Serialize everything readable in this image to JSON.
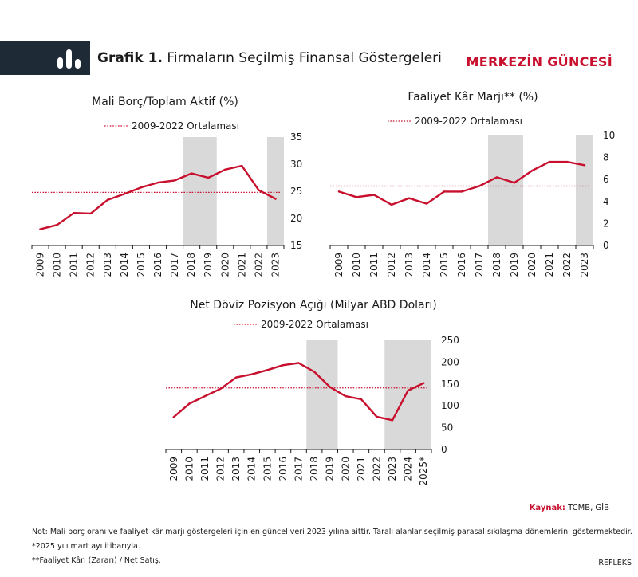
{
  "header": {
    "title_bold": "Grafik 1.",
    "title_rest": " Firmaların Seçilmiş Finansal Göstergeleri",
    "brand": "MERKEZİN GÜNCESİ",
    "icon": "bar-chart-icon"
  },
  "colors": {
    "line": "#c8102e",
    "shade": "#d9d9d9",
    "header_bg": "#1f2a37",
    "axis": "#1a1a1a"
  },
  "chart_data": [
    {
      "type": "line",
      "title": "Mali Borç/Toplam Aktif (%)",
      "legend": "2009-2022 Ortalaması",
      "categories": [
        "2009",
        "2010",
        "2011",
        "2012",
        "2013",
        "2014",
        "2015",
        "2016",
        "2017",
        "2018",
        "2019",
        "2020",
        "2021",
        "2022",
        "2023"
      ],
      "series": [
        {
          "values": [
            18.0,
            18.8,
            21.0,
            20.9,
            23.4,
            24.5,
            25.7,
            26.6,
            27.0,
            28.3,
            27.5,
            29.0,
            29.7,
            25.2,
            23.6
          ]
        }
      ],
      "average": 24.8,
      "ylim": [
        15,
        35
      ],
      "yticks": [
        15,
        20,
        25,
        30,
        35
      ],
      "shaded": [
        [
          2018,
          2019
        ],
        [
          2023,
          2023
        ]
      ],
      "y_axis": "right"
    },
    {
      "type": "line",
      "title": "Faaliyet Kâr Marjı** (%)",
      "legend": "2009-2022 Ortalaması",
      "categories": [
        "2009",
        "2010",
        "2011",
        "2012",
        "2013",
        "2014",
        "2015",
        "2016",
        "2017",
        "2018",
        "2019",
        "2020",
        "2021",
        "2022",
        "2023"
      ],
      "series": [
        {
          "values": [
            4.9,
            4.4,
            4.6,
            3.7,
            4.3,
            3.8,
            4.9,
            4.9,
            5.4,
            6.2,
            5.7,
            6.8,
            7.6,
            7.6,
            7.3
          ]
        }
      ],
      "average": 5.4,
      "ylim": [
        0,
        10
      ],
      "yticks": [
        0,
        2,
        4,
        6,
        8,
        10
      ],
      "shaded": [
        [
          2018,
          2019
        ],
        [
          2023,
          2023
        ]
      ],
      "y_axis": "right"
    },
    {
      "type": "line",
      "title": "Net Döviz Pozisyon Açığı (Milyar ABD Doları)",
      "legend": "2009-2022 Ortalaması",
      "categories": [
        "2009",
        "2010",
        "2011",
        "2012",
        "2013",
        "2014",
        "2015",
        "2016",
        "2017",
        "2018",
        "2019",
        "2020",
        "2021",
        "2022",
        "2023",
        "2024",
        "2025*"
      ],
      "series": [
        {
          "values": [
            74,
            105,
            122,
            139,
            165,
            172,
            182,
            193,
            198,
            178,
            143,
            122,
            115,
            75,
            67,
            135,
            152
          ]
        }
      ],
      "average": 141,
      "ylim": [
        0,
        250
      ],
      "yticks": [
        0,
        50,
        100,
        150,
        200,
        250
      ],
      "shaded": [
        [
          2018,
          2019
        ],
        [
          2023,
          2025
        ]
      ],
      "y_axis": "right"
    }
  ],
  "footer": {
    "source_label": "Kaynak:",
    "source_value": " TCMB, GİB",
    "note1": "Not: Mali borç oranı ve faaliyet kâr marjı göstergeleri için en güncel veri 2023 yılına aittir. Taralı alanlar seçilmiş parasal sıkılaşma dönemlerini göstermektedir.",
    "note2": "*2025 yılı mart ayı itibarıyla.",
    "note3": "**Faaliyet Kârı (Zararı) / Net Satış.",
    "refleks": "REFLEKS"
  }
}
